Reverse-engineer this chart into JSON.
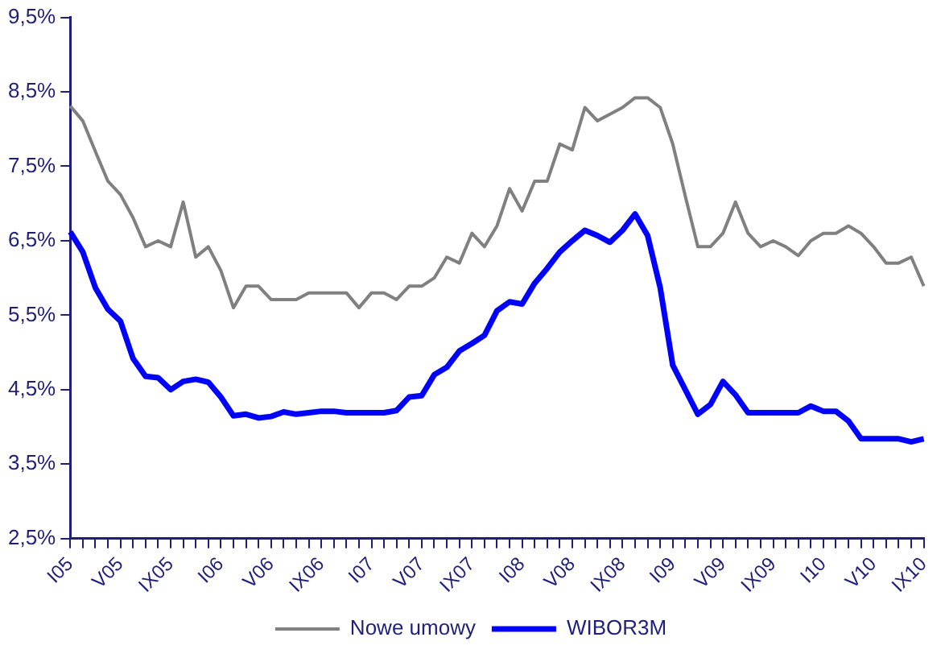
{
  "chart_data": {
    "type": "line",
    "categories": [
      "I05",
      null,
      null,
      null,
      "V05",
      null,
      null,
      null,
      "IX05",
      null,
      null,
      null,
      "I06",
      null,
      null,
      null,
      "V06",
      null,
      null,
      null,
      "IX06",
      null,
      null,
      null,
      "I07",
      null,
      null,
      null,
      "V07",
      null,
      null,
      null,
      "IX07",
      null,
      null,
      null,
      "I08",
      null,
      null,
      null,
      "V08",
      null,
      null,
      null,
      "IX08",
      null,
      null,
      null,
      "I09",
      null,
      null,
      null,
      "V09",
      null,
      null,
      null,
      "IX09",
      null,
      null,
      null,
      "I10",
      null,
      null,
      null,
      "V10",
      null,
      null,
      null,
      "IX10"
    ],
    "series": [
      {
        "name": "Nowe umowy",
        "color": "#808080",
        "values": [
          8.31,
          8.11,
          7.7,
          7.3,
          7.12,
          6.81,
          6.42,
          6.5,
          6.42,
          7.02,
          6.28,
          6.42,
          6.1,
          5.6,
          5.89,
          5.89,
          5.71,
          5.71,
          5.71,
          5.8,
          5.8,
          5.8,
          5.8,
          5.6,
          5.8,
          5.8,
          5.71,
          5.89,
          5.89,
          6.0,
          6.28,
          6.2,
          6.6,
          6.42,
          6.7,
          7.2,
          6.9,
          7.3,
          7.3,
          7.8,
          7.72,
          8.29,
          8.11,
          8.2,
          8.29,
          8.42,
          8.42,
          8.29,
          7.8,
          7.1,
          6.42,
          6.42,
          6.6,
          7.02,
          6.6,
          6.42,
          6.5,
          6.42,
          6.3,
          6.5,
          6.6,
          6.6,
          6.7,
          6.6,
          6.42,
          6.2,
          6.2,
          6.28,
          5.89
        ]
      },
      {
        "name": "WIBOR3M",
        "color": "#0000ff",
        "values": [
          6.62,
          6.35,
          5.87,
          5.58,
          5.42,
          4.92,
          4.68,
          4.66,
          4.5,
          4.61,
          4.64,
          4.6,
          4.4,
          4.15,
          4.17,
          4.12,
          4.14,
          4.2,
          4.17,
          4.19,
          4.21,
          4.21,
          4.19,
          4.19,
          4.19,
          4.19,
          4.22,
          4.4,
          4.42,
          4.7,
          4.8,
          5.02,
          5.12,
          5.23,
          5.56,
          5.68,
          5.65,
          5.93,
          6.13,
          6.35,
          6.5,
          6.64,
          6.57,
          6.48,
          6.64,
          6.86,
          6.57,
          5.87,
          4.83,
          4.5,
          4.17,
          4.3,
          4.61,
          4.43,
          4.19,
          4.19,
          4.19,
          4.19,
          4.19,
          4.28,
          4.21,
          4.21,
          4.08,
          3.84,
          3.84,
          3.84,
          3.84,
          3.8,
          3.84
        ]
      }
    ],
    "ylim": [
      2.5,
      9.5
    ],
    "yticks": [
      {
        "value": 2.5,
        "label": "2,5%"
      },
      {
        "value": 3.5,
        "label": "3,5%"
      },
      {
        "value": 4.5,
        "label": "4,5%"
      },
      {
        "value": 5.5,
        "label": "5,5%"
      },
      {
        "value": 6.5,
        "label": "6,5%"
      },
      {
        "value": 7.5,
        "label": "7,5%"
      },
      {
        "value": 8.5,
        "label": "8,5%"
      },
      {
        "value": 9.5,
        "label": "9,5%"
      }
    ],
    "grid": false,
    "legend": "bottom",
    "marker": "none",
    "line_style": "solid"
  }
}
